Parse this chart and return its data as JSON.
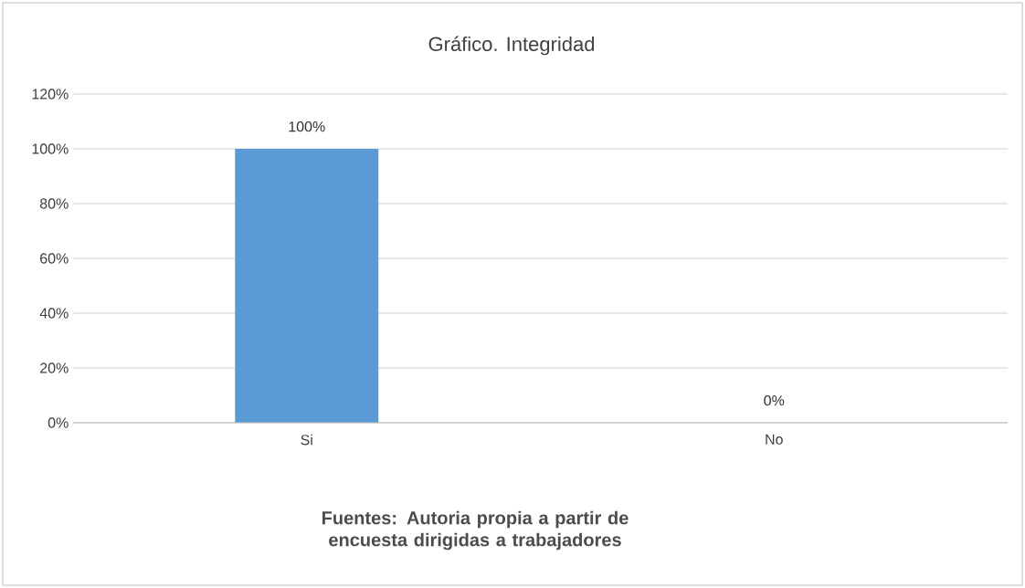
{
  "chart_data": {
    "type": "bar",
    "title": "Gráfico.  Integridad",
    "categories": [
      "Si",
      "No"
    ],
    "values": [
      100,
      0
    ],
    "value_labels": [
      "100%",
      "0%"
    ],
    "color": "#5b9bd5",
    "ylim": [
      0,
      120
    ],
    "yticks": [
      {
        "value": 0,
        "label": "0%"
      },
      {
        "value": 20,
        "label": "20%"
      },
      {
        "value": 40,
        "label": "40%"
      },
      {
        "value": 60,
        "label": "60%"
      },
      {
        "value": 80,
        "label": "80%"
      },
      {
        "value": 100,
        "label": "100%"
      },
      {
        "value": 120,
        "label": "120%"
      }
    ],
    "grid": "y",
    "annotations": [
      "Fuentes: Autoria propia a partir de encuesta dirigidas a trabajadores"
    ]
  }
}
